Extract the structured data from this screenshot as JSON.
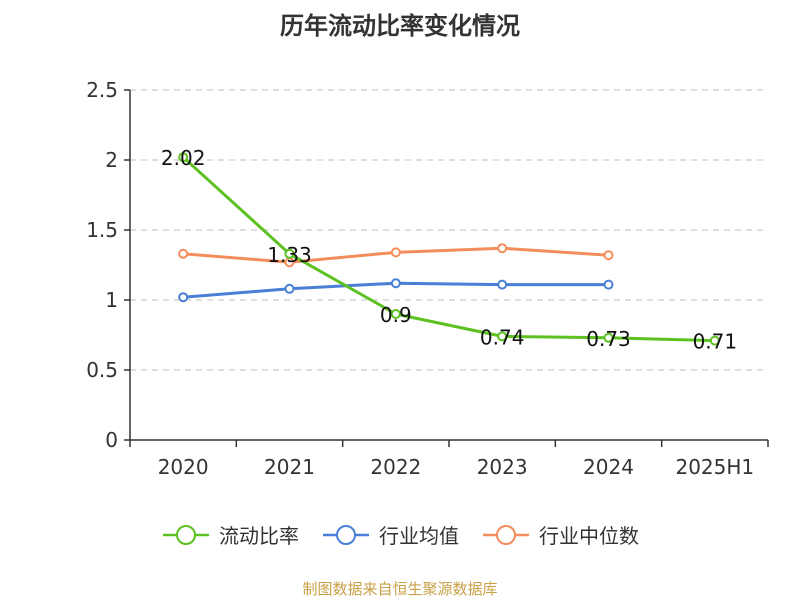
{
  "title": "历年流动比率变化情况",
  "source_note": "制图数据来自恒生聚源数据库",
  "chart_data": {
    "type": "line",
    "title": "历年流动比率变化情况",
    "categories": [
      "2020",
      "2021",
      "2022",
      "2023",
      "2024",
      "2025H1"
    ],
    "ylim": [
      0,
      2.5
    ],
    "yticks": [
      0,
      0.5,
      1,
      1.5,
      2,
      2.5
    ],
    "ytick_labels": [
      "0",
      "0.5",
      "1",
      "1.5",
      "2",
      "2.5"
    ],
    "grid": true,
    "legend_position": "bottom",
    "series": [
      {
        "name": "流动比率",
        "color": "#5cc121",
        "values": [
          2.02,
          1.33,
          0.9,
          0.74,
          0.73,
          0.71
        ],
        "labels": [
          "2.02",
          "1.33",
          "0.9",
          "0.74",
          "0.73",
          "0.71"
        ]
      },
      {
        "name": "行业均值",
        "color": "#4a7fd6",
        "values": [
          1.02,
          1.08,
          1.12,
          1.11,
          1.11,
          null
        ]
      },
      {
        "name": "行业中位数",
        "color": "#f48d5c",
        "values": [
          1.33,
          1.27,
          1.34,
          1.37,
          1.32,
          null
        ]
      }
    ]
  }
}
